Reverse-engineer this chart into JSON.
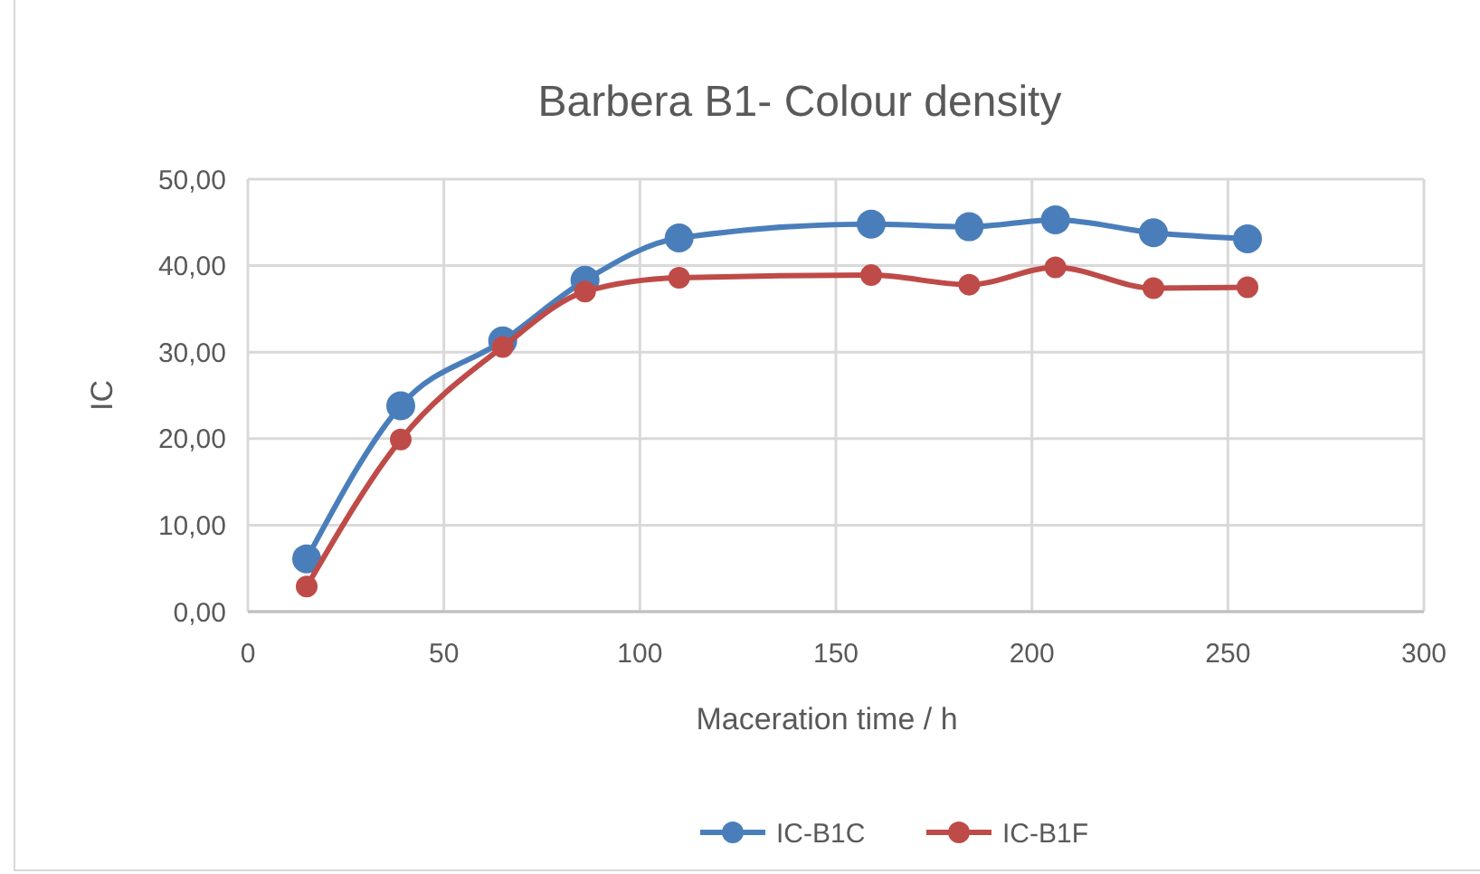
{
  "chart_data": {
    "type": "line",
    "title": "Barbera B1- Colour density",
    "xlabel": "Maceration time / h",
    "ylabel": "IC",
    "x": [
      15,
      39,
      65,
      86,
      110,
      159,
      184,
      206,
      231,
      255
    ],
    "series": [
      {
        "name": "IC-B1C",
        "color": "#4a7ebb",
        "values": [
          6.1,
          23.8,
          31.3,
          38.3,
          43.2,
          44.8,
          44.5,
          45.3,
          43.8,
          43.1
        ]
      },
      {
        "name": "IC-B1F",
        "color": "#be4b48",
        "values": [
          2.9,
          19.9,
          30.6,
          37.0,
          38.6,
          38.9,
          37.8,
          39.8,
          37.4,
          37.5
        ]
      }
    ],
    "xlim": [
      0,
      300
    ],
    "xticks": [
      0,
      50,
      100,
      150,
      200,
      250,
      300
    ],
    "ylim": [
      0,
      50
    ],
    "yticks": [
      {
        "value": 0,
        "label": "0,00"
      },
      {
        "value": 10,
        "label": "10,00"
      },
      {
        "value": 20,
        "label": "20,00"
      },
      {
        "value": 30,
        "label": "30,00"
      },
      {
        "value": 40,
        "label": "40,00"
      },
      {
        "value": 50,
        "label": "50,00"
      }
    ],
    "grid": true,
    "legend": "bottom",
    "marker": "circle",
    "line_style": "solid"
  }
}
